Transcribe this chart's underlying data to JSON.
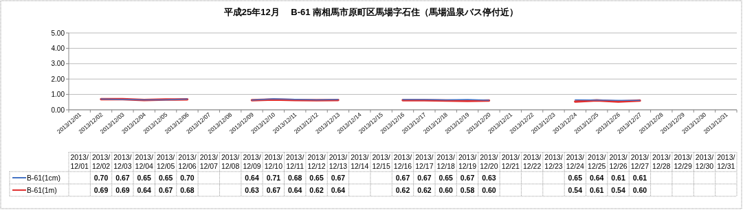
{
  "chart_data": {
    "type": "line",
    "title": "平成25年12月　 B-61 南相馬市原町区馬場字石住（馬場温泉バス停付近）",
    "categories": [
      "2013/12/01",
      "2013/12/02",
      "2013/12/03",
      "2013/12/04",
      "2013/12/05",
      "2013/12/06",
      "2013/12/07",
      "2013/12/08",
      "2013/12/09",
      "2013/12/10",
      "2013/12/11",
      "2013/12/12",
      "2013/12/13",
      "2013/12/14",
      "2013/12/15",
      "2013/12/16",
      "2013/12/17",
      "2013/12/18",
      "2013/12/19",
      "2013/12/20",
      "2013/12/21",
      "2013/12/22",
      "2013/12/23",
      "2013/12/24",
      "2013/12/25",
      "2013/12/26",
      "2013/12/27",
      "2013/12/28",
      "2013/12/29",
      "2013/12/30",
      "2013/12/31"
    ],
    "series": [
      {
        "name": "B-61(1cm)",
        "color": "#4472c4",
        "values": [
          null,
          0.7,
          0.67,
          0.65,
          0.65,
          0.7,
          null,
          null,
          0.64,
          0.71,
          0.68,
          0.65,
          0.67,
          null,
          null,
          0.67,
          0.67,
          0.65,
          0.67,
          0.63,
          null,
          null,
          null,
          0.65,
          0.64,
          0.61,
          0.61,
          null,
          null,
          null,
          null
        ],
        "value_labels": [
          null,
          "0.70",
          "0.67",
          "0.65",
          "0.65",
          "0.70",
          null,
          null,
          "0.64",
          "0.71",
          "0.68",
          "0.65",
          "0.67",
          null,
          null,
          "0.67",
          "0.67",
          "0.65",
          "0.67",
          "0.63",
          null,
          null,
          null,
          "0.65",
          "0.64",
          "0.61",
          "0.61",
          null,
          null,
          null,
          null
        ]
      },
      {
        "name": "B-61(1m)",
        "color": "#e03030",
        "values": [
          null,
          0.69,
          0.69,
          0.64,
          0.67,
          0.68,
          null,
          null,
          0.63,
          0.67,
          0.64,
          0.62,
          0.64,
          null,
          null,
          0.62,
          0.62,
          0.6,
          0.58,
          0.6,
          null,
          null,
          null,
          0.54,
          0.61,
          0.54,
          0.6,
          null,
          null,
          null,
          null
        ],
        "value_labels": [
          null,
          "0.69",
          "0.69",
          "0.64",
          "0.67",
          "0.68",
          null,
          null,
          "0.63",
          "0.67",
          "0.64",
          "0.62",
          "0.64",
          null,
          null,
          "0.62",
          "0.62",
          "0.60",
          "0.58",
          "0.60",
          null,
          null,
          null,
          "0.54",
          "0.61",
          "0.54",
          "0.60",
          null,
          null,
          null,
          null
        ]
      }
    ],
    "ylim": [
      0,
      5
    ],
    "yticks": [
      {
        "value": 0,
        "label": "0.00"
      },
      {
        "value": 1,
        "label": "1.00"
      },
      {
        "value": 2,
        "label": "2.00"
      },
      {
        "value": 3,
        "label": "3.00"
      },
      {
        "value": 4,
        "label": "4.00"
      },
      {
        "value": 5,
        "label": "5.00"
      }
    ],
    "grid": "y",
    "legend": "bottom",
    "marker": "none",
    "line_style": "solid"
  }
}
